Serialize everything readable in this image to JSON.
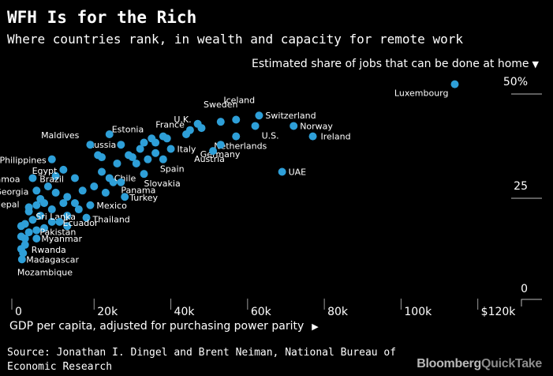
{
  "title": "WFH Is for the Rich",
  "subtitle": "Where countries rank, in wealth and capacity for remote work",
  "source": "Source: Jonathan I. Dingel and Brent Neiman, National Bureau of Economic Research",
  "brand": {
    "primary": "Bloomberg",
    "secondary": "QuickTake"
  },
  "chart_data": {
    "type": "scatter",
    "xlabel": "GDP per capita, adjusted for purchasing power parity",
    "ylabel": "Estimated share of jobs that can be done at home",
    "xlim": [
      0,
      125000
    ],
    "ylim": [
      0,
      50
    ],
    "x_ticks": [
      {
        "value": 0,
        "label": "0"
      },
      {
        "value": 20000,
        "label": "20k"
      },
      {
        "value": 40000,
        "label": "40k"
      },
      {
        "value": 60000,
        "label": "60k"
      },
      {
        "value": 80000,
        "label": "80k"
      },
      {
        "value": 100000,
        "label": "100k"
      },
      {
        "value": 120000,
        "label": "$120k"
      }
    ],
    "y_ticks": [
      {
        "value": 0,
        "label": "0"
      },
      {
        "value": 25,
        "label": "25"
      },
      {
        "value": 50,
        "label": "50%"
      }
    ],
    "colors": {
      "point": "#2e9fd8",
      "background": "#000000",
      "text": "#ffffff"
    },
    "labeled_points": [
      {
        "name": "Luxembourg",
        "x": 114000,
        "y": 49.5
      },
      {
        "name": "Sweden",
        "x": 53000,
        "y": 40.5
      },
      {
        "name": "Iceland",
        "x": 57000,
        "y": 41
      },
      {
        "name": "Switzerland",
        "x": 63000,
        "y": 42
      },
      {
        "name": "U.K.",
        "x": 47000,
        "y": 40
      },
      {
        "name": "France",
        "x": 45000,
        "y": 38.5
      },
      {
        "name": "U.S.",
        "x": 62000,
        "y": 39.5
      },
      {
        "name": "Norway",
        "x": 72000,
        "y": 39.5
      },
      {
        "name": "Netherlands",
        "x": 57000,
        "y": 37
      },
      {
        "name": "Ireland",
        "x": 77000,
        "y": 37
      },
      {
        "name": "Estonia",
        "x": 35000,
        "y": 36.5
      },
      {
        "name": "Russia",
        "x": 27000,
        "y": 35
      },
      {
        "name": "Maldives",
        "x": 19000,
        "y": 35
      },
      {
        "name": "Germany",
        "x": 53000,
        "y": 35
      },
      {
        "name": "Italy",
        "x": 40000,
        "y": 34
      },
      {
        "name": "Austria",
        "x": 51000,
        "y": 33.5
      },
      {
        "name": "Spain",
        "x": 38000,
        "y": 31.5
      },
      {
        "name": "Philippines",
        "x": 9000,
        "y": 31.5
      },
      {
        "name": "UAE",
        "x": 69000,
        "y": 28.5
      },
      {
        "name": "Egypt",
        "x": 12000,
        "y": 29
      },
      {
        "name": "Slovakia",
        "x": 33000,
        "y": 28
      },
      {
        "name": "Samoa",
        "x": 4000,
        "y": 27
      },
      {
        "name": "Brazil",
        "x": 15000,
        "y": 27
      },
      {
        "name": "Chile",
        "x": 24000,
        "y": 27
      },
      {
        "name": "Panama",
        "x": 27000,
        "y": 26
      },
      {
        "name": "Georgia",
        "x": 5000,
        "y": 24
      },
      {
        "name": "Turkey",
        "x": 28000,
        "y": 22.5
      },
      {
        "name": "Nepal",
        "x": 3000,
        "y": 20
      },
      {
        "name": "Mexico",
        "x": 19000,
        "y": 20.5
      },
      {
        "name": "Sri Lanka",
        "x": 13000,
        "y": 18
      },
      {
        "name": "Thailand",
        "x": 18000,
        "y": 17.5
      },
      {
        "name": "Ecuador",
        "x": 11000,
        "y": 16.5
      },
      {
        "name": "Pakistan",
        "x": 5000,
        "y": 14.5
      },
      {
        "name": "Myanmar",
        "x": 5000,
        "y": 12.5
      },
      {
        "name": "Rwanda",
        "x": 2000,
        "y": 11
      },
      {
        "name": "Madagascar",
        "x": 1500,
        "y": 9
      },
      {
        "name": "Mozambique",
        "x": 1200,
        "y": 7.5
      }
    ],
    "unlabeled_points": [
      {
        "x": 24000,
        "y": 37.5
      },
      {
        "x": 33000,
        "y": 35.5
      },
      {
        "x": 32000,
        "y": 34
      },
      {
        "x": 36000,
        "y": 35.5
      },
      {
        "x": 29000,
        "y": 32.5
      },
      {
        "x": 34000,
        "y": 31.5
      },
      {
        "x": 30000,
        "y": 32
      },
      {
        "x": 36000,
        "y": 33
      },
      {
        "x": 31000,
        "y": 30.5
      },
      {
        "x": 38000,
        "y": 37
      },
      {
        "x": 39000,
        "y": 36.5
      },
      {
        "x": 44000,
        "y": 37.5
      },
      {
        "x": 48000,
        "y": 39
      },
      {
        "x": 22000,
        "y": 32
      },
      {
        "x": 21000,
        "y": 32.5
      },
      {
        "x": 26000,
        "y": 30.5
      },
      {
        "x": 22000,
        "y": 28.5
      },
      {
        "x": 25000,
        "y": 26
      },
      {
        "x": 20000,
        "y": 25
      },
      {
        "x": 23000,
        "y": 23.5
      },
      {
        "x": 17000,
        "y": 24
      },
      {
        "x": 15000,
        "y": 21
      },
      {
        "x": 13000,
        "y": 22.5
      },
      {
        "x": 10000,
        "y": 23.5
      },
      {
        "x": 8000,
        "y": 25
      },
      {
        "x": 10000,
        "y": 27.5
      },
      {
        "x": 12000,
        "y": 21
      },
      {
        "x": 9000,
        "y": 19.5
      },
      {
        "x": 7000,
        "y": 21
      },
      {
        "x": 6000,
        "y": 18
      },
      {
        "x": 4000,
        "y": 17
      },
      {
        "x": 2000,
        "y": 16
      },
      {
        "x": 1000,
        "y": 15.5
      },
      {
        "x": 3000,
        "y": 14
      },
      {
        "x": 7000,
        "y": 15
      },
      {
        "x": 9000,
        "y": 16.5
      },
      {
        "x": 13000,
        "y": 15.5
      },
      {
        "x": 1000,
        "y": 13
      },
      {
        "x": 2000,
        "y": 12.5
      },
      {
        "x": 3000,
        "y": 19
      },
      {
        "x": 6000,
        "y": 22
      },
      {
        "x": 5000,
        "y": 20.5
      },
      {
        "x": 16000,
        "y": 19.5
      },
      {
        "x": 1000,
        "y": 10
      }
    ]
  }
}
